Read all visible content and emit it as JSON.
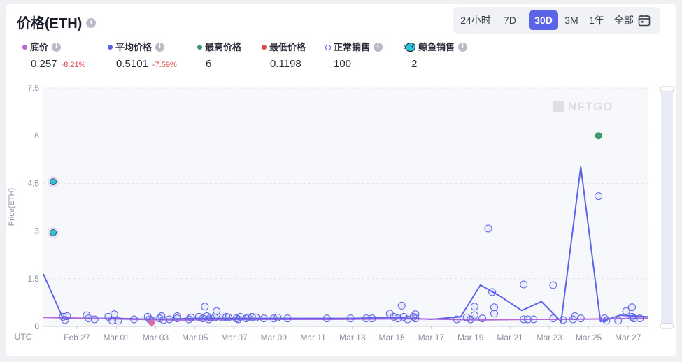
{
  "title": "价格(ETH)",
  "range": {
    "options": [
      "24小时",
      "7D",
      "30D",
      "3M",
      "1年",
      "全部"
    ],
    "selected": "30D",
    "calendar_icon": "calendar-icon"
  },
  "legend": [
    {
      "label": "底价",
      "value": "0.257",
      "change": "-8.21%",
      "color": "#b56ad8",
      "marker": "dot",
      "info": true
    },
    {
      "label": "平均价格",
      "value": "0.5101",
      "change": "-7.59%",
      "color": "#5b63e8",
      "marker": "dot",
      "info": true
    },
    {
      "label": "最高价格",
      "value": "6",
      "change": "",
      "color": "#3b9a6e",
      "marker": "dot",
      "info": false
    },
    {
      "label": "最低价格",
      "value": "0.1198",
      "change": "",
      "color": "#e04848",
      "marker": "dot",
      "info": false
    },
    {
      "label": "正常销售",
      "value": "100",
      "change": "",
      "color": "#5b63e8",
      "marker": "ring",
      "info": true
    },
    {
      "label": "鲸鱼销售",
      "value": "2",
      "change": "",
      "color": "#2ec4d8",
      "marker": "whale-icon",
      "info": true
    }
  ],
  "watermark": "NFTGO",
  "chart_data": {
    "type": "line",
    "ylabel": "Price(ETH)",
    "xlabel": "UTC",
    "ylim": [
      0,
      7.5
    ],
    "yticks": [
      "0",
      "1.5",
      "3",
      "4.5",
      "6",
      "7.5"
    ],
    "xticks": [
      {
        "label": "Feb 27",
        "x": 27
      },
      {
        "label": "Mar 01",
        "x": 29
      },
      {
        "label": "Mar 03",
        "x": 31
      },
      {
        "label": "Mar 05",
        "x": 33
      },
      {
        "label": "Mar 07",
        "x": 35
      },
      {
        "label": "Mar 09",
        "x": 37
      },
      {
        "label": "Mar 11",
        "x": 39
      },
      {
        "label": "Mar 13",
        "x": 41
      },
      {
        "label": "Mar 15",
        "x": 43
      },
      {
        "label": "Mar 17",
        "x": 45
      },
      {
        "label": "Mar 19",
        "x": 47
      },
      {
        "label": "Mar 21",
        "x": 49
      },
      {
        "label": "Mar 23",
        "x": 51
      },
      {
        "label": "Mar 25",
        "x": 53
      },
      {
        "label": "Mar 27",
        "x": 55
      }
    ],
    "xlim": [
      25.3,
      56.0
    ],
    "grid": true,
    "series": [
      {
        "name": "平均价格",
        "color": "#5b63e8",
        "points": [
          [
            25.3,
            1.65
          ],
          [
            26.3,
            0.25
          ],
          [
            27.5,
            0.25
          ],
          [
            29,
            0.25
          ],
          [
            31,
            0.22
          ],
          [
            33,
            0.25
          ],
          [
            35,
            0.25
          ],
          [
            37,
            0.25
          ],
          [
            39,
            0.25
          ],
          [
            41,
            0.25
          ],
          [
            43,
            0.28
          ],
          [
            45,
            0.22
          ],
          [
            46.5,
            0.3
          ],
          [
            47.5,
            1.3
          ],
          [
            48.5,
            0.95
          ],
          [
            49.6,
            0.5
          ],
          [
            50.6,
            0.78
          ],
          [
            51.6,
            0.15
          ],
          [
            52.6,
            5.02
          ],
          [
            53.6,
            0.15
          ],
          [
            54.6,
            0.35
          ],
          [
            56,
            0.3
          ]
        ]
      },
      {
        "name": "底价",
        "color": "#b56ad8",
        "points": [
          [
            25.3,
            0.28
          ],
          [
            30,
            0.22
          ],
          [
            32,
            0.2
          ],
          [
            36,
            0.22
          ],
          [
            40,
            0.22
          ],
          [
            44,
            0.24
          ],
          [
            47.5,
            0.2
          ],
          [
            50,
            0.22
          ],
          [
            52,
            0.22
          ],
          [
            53.5,
            0.23
          ],
          [
            56,
            0.26
          ]
        ]
      }
    ],
    "normal_sales": [
      [
        26.3,
        0.3
      ],
      [
        26.5,
        0.32
      ],
      [
        26.4,
        0.2
      ],
      [
        27.5,
        0.35
      ],
      [
        27.6,
        0.25
      ],
      [
        27.9,
        0.22
      ],
      [
        28.6,
        0.3
      ],
      [
        28.8,
        0.18
      ],
      [
        28.9,
        0.38
      ],
      [
        29.1,
        0.18
      ],
      [
        29.9,
        0.22
      ],
      [
        30.6,
        0.3
      ],
      [
        30.7,
        0.22
      ],
      [
        30.8,
        0.18
      ],
      [
        31.2,
        0.25
      ],
      [
        31.3,
        0.32
      ],
      [
        31.4,
        0.2
      ],
      [
        31.7,
        0.22
      ],
      [
        32.1,
        0.32
      ],
      [
        32.1,
        0.25
      ],
      [
        32.7,
        0.22
      ],
      [
        32.8,
        0.28
      ],
      [
        33.2,
        0.3
      ],
      [
        33.4,
        0.25
      ],
      [
        33.5,
        0.62
      ],
      [
        33.6,
        0.32
      ],
      [
        33.7,
        0.22
      ],
      [
        33.8,
        0.28
      ],
      [
        34,
        0.28
      ],
      [
        34.1,
        0.48
      ],
      [
        34.4,
        0.28
      ],
      [
        34.6,
        0.3
      ],
      [
        34.7,
        0.28
      ],
      [
        35.1,
        0.25
      ],
      [
        35.2,
        0.22
      ],
      [
        35.3,
        0.3
      ],
      [
        35.6,
        0.25
      ],
      [
        35.7,
        0.28
      ],
      [
        35.9,
        0.3
      ],
      [
        36.1,
        0.28
      ],
      [
        36.5,
        0.25
      ],
      [
        37,
        0.25
      ],
      [
        37.2,
        0.28
      ],
      [
        37.7,
        0.25
      ],
      [
        39.7,
        0.25
      ],
      [
        40.9,
        0.25
      ],
      [
        41.7,
        0.25
      ],
      [
        42,
        0.25
      ],
      [
        42.9,
        0.4
      ],
      [
        43.1,
        0.3
      ],
      [
        43.3,
        0.25
      ],
      [
        43.5,
        0.65
      ],
      [
        43.6,
        0.3
      ],
      [
        43.8,
        0.22
      ],
      [
        44.1,
        0.3
      ],
      [
        44.2,
        0.38
      ],
      [
        44.2,
        0.25
      ],
      [
        46.3,
        0.22
      ],
      [
        46.8,
        0.28
      ],
      [
        47,
        0.22
      ],
      [
        47.2,
        0.35
      ],
      [
        47.2,
        0.62
      ],
      [
        47.6,
        0.25
      ],
      [
        47.9,
        3.08
      ],
      [
        48.1,
        1.08
      ],
      [
        48.2,
        0.4
      ],
      [
        48.2,
        0.6
      ],
      [
        49.7,
        0.22
      ],
      [
        49.7,
        1.32
      ],
      [
        49.9,
        0.22
      ],
      [
        50.2,
        0.22
      ],
      [
        51.2,
        1.3
      ],
      [
        51.2,
        0.25
      ],
      [
        51.7,
        0.2
      ],
      [
        52.2,
        0.22
      ],
      [
        52.3,
        0.32
      ],
      [
        52.6,
        0.25
      ],
      [
        53.5,
        4.1
      ],
      [
        53.8,
        0.25
      ],
      [
        53.9,
        0.18
      ],
      [
        54.5,
        0.18
      ],
      [
        54.9,
        0.48
      ],
      [
        55.2,
        0.6
      ],
      [
        55.2,
        0.3
      ],
      [
        55.3,
        0.25
      ],
      [
        55.6,
        0.25
      ]
    ],
    "whale_sales": [
      [
        25.8,
        4.55
      ],
      [
        25.8,
        2.95
      ]
    ],
    "highest_sale": [
      53.5,
      6.0
    ],
    "lowest_sale": [
      30.8,
      0.12
    ]
  }
}
